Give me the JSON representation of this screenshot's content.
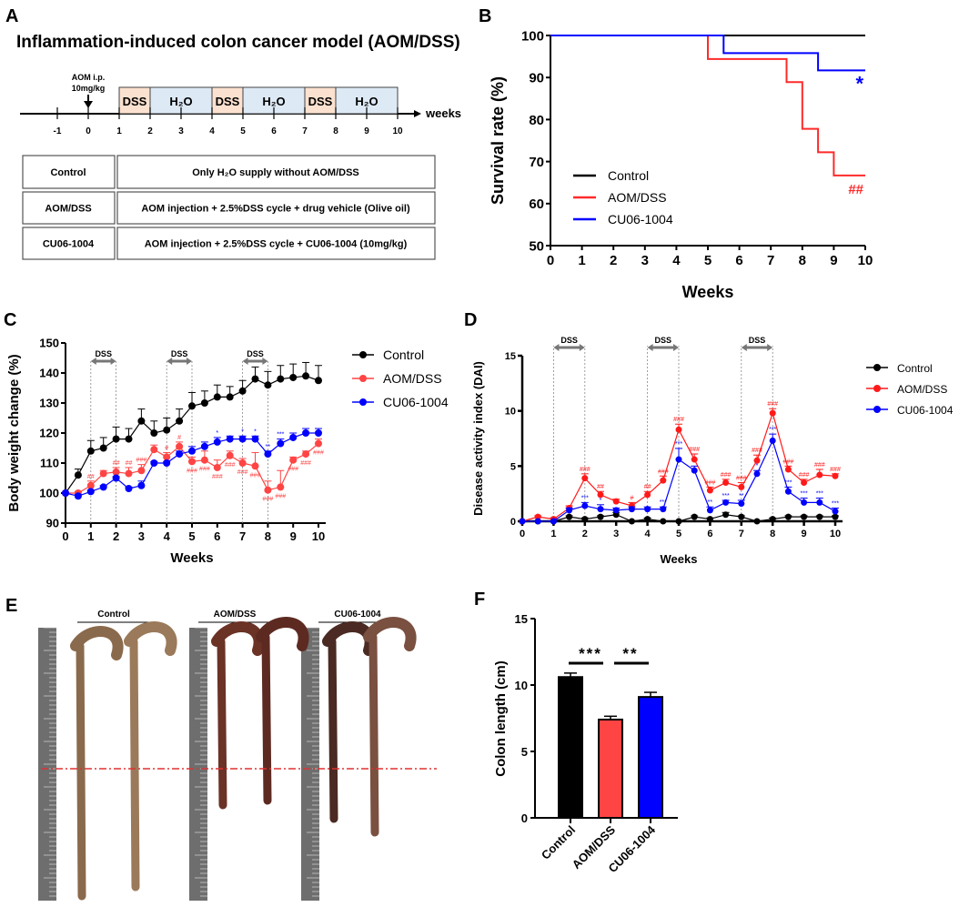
{
  "panels": {
    "a": "A",
    "b": "B",
    "c": "C",
    "d": "D",
    "e": "E",
    "f": "F"
  },
  "protocol": {
    "title": "Inflammation-induced colon cancer model (AOM/DSS)",
    "injection_line1": "AOM i.p.",
    "injection_line2": "10mg/kg",
    "axis_label": "weeks",
    "ticks": [
      "-1",
      "0",
      "1",
      "2",
      "3",
      "4",
      "5",
      "6",
      "7",
      "8",
      "9",
      "10"
    ],
    "phases": [
      {
        "label": "DSS",
        "start": 1,
        "end": 2,
        "color": "#fbe1cf"
      },
      {
        "label": "H₂O",
        "start": 2,
        "end": 4,
        "color": "#dde9f5"
      },
      {
        "label": "DSS",
        "start": 4,
        "end": 5,
        "color": "#fbe1cf"
      },
      {
        "label": "H₂O",
        "start": 5,
        "end": 7,
        "color": "#dde9f5"
      },
      {
        "label": "DSS",
        "start": 7,
        "end": 8,
        "color": "#fbe1cf"
      },
      {
        "label": "H₂O",
        "start": 8,
        "end": 10,
        "color": "#dde9f5"
      }
    ],
    "groups": [
      {
        "name": "Control",
        "description": "Only H₂O supply without AOM/DSS"
      },
      {
        "name": "AOM/DSS",
        "description": "AOM injection + 2.5%DSS cycle + drug vehicle (Olive oil)"
      },
      {
        "name": "CU06-1004",
        "description": "AOM injection + 2.5%DSS cycle + CU06-1004 (10mg/kg)"
      }
    ]
  },
  "photo_panel": {
    "labels": [
      "Control",
      "AOM/DSS",
      "CU06-1004"
    ]
  },
  "chart_data": [
    {
      "id": "survival",
      "type": "line",
      "step": true,
      "title": "",
      "xlabel": "Weeks",
      "ylabel": "Survival rate (%)",
      "xlim": [
        0,
        10
      ],
      "ylim": [
        50,
        100
      ],
      "xticks": [
        0,
        1,
        2,
        3,
        4,
        5,
        6,
        7,
        8,
        9,
        10
      ],
      "yticks": [
        50,
        60,
        70,
        80,
        90,
        100
      ],
      "legend": "bottom-left",
      "series": [
        {
          "name": "Control",
          "color": "#000000",
          "x": [
            0,
            10
          ],
          "y": [
            100,
            100
          ],
          "mark": ""
        },
        {
          "name": "AOM/DSS",
          "color": "#ff2a2a",
          "x": [
            0,
            5,
            7.5,
            8,
            8.5,
            9,
            10
          ],
          "y": [
            100,
            94.4,
            88.9,
            77.8,
            72.2,
            66.7,
            66.7
          ],
          "mark": "##"
        },
        {
          "name": "CU06-1004",
          "color": "#0000ff",
          "x": [
            0,
            5.5,
            8.5,
            10
          ],
          "y": [
            100,
            95.8,
            91.7,
            91.7
          ],
          "mark": "*"
        }
      ]
    },
    {
      "id": "bodyweight",
      "type": "line",
      "xlabel": "Weeks",
      "ylabel": "Body weight change (%)",
      "xlim": [
        0,
        10
      ],
      "ylim": [
        90,
        150
      ],
      "xticks": [
        0,
        1,
        2,
        3,
        4,
        5,
        6,
        7,
        8,
        9,
        10
      ],
      "yticks": [
        90,
        100,
        110,
        120,
        130,
        140,
        150
      ],
      "legend": "right",
      "dss_label": "DSS",
      "dss_periods": [
        [
          1,
          2
        ],
        [
          4,
          5
        ],
        [
          7,
          8
        ]
      ],
      "x": [
        0,
        0.5,
        1,
        1.5,
        2,
        2.5,
        3,
        3.5,
        4,
        4.5,
        5,
        5.5,
        6,
        6.5,
        7,
        7.5,
        8,
        8.5,
        9,
        9.5,
        10
      ],
      "series": [
        {
          "name": "Control",
          "color": "#000000",
          "y": [
            100,
            106,
            114,
            115,
            118,
            118,
            124,
            120,
            121,
            124,
            129,
            130,
            132,
            132,
            134,
            138,
            136,
            138,
            138.5,
            139,
            137.5
          ],
          "err": [
            0,
            2,
            3.5,
            3.5,
            4,
            3.5,
            4,
            4,
            4,
            4,
            4.5,
            4,
            4,
            3.5,
            3.5,
            4,
            4.5,
            4.5,
            4.5,
            4.5,
            5
          ],
          "annotations": []
        },
        {
          "name": "AOM/DSS",
          "color": "#ff4444",
          "y": [
            100,
            100,
            102.5,
            106.5,
            107,
            106.5,
            107.5,
            114.5,
            112,
            115.5,
            110.5,
            111,
            108.5,
            112.5,
            110,
            109,
            101,
            102,
            111,
            113,
            116.5
          ],
          "err": [
            0,
            0.5,
            1.5,
            1,
            1.5,
            2,
            2,
            1.5,
            1.5,
            1.5,
            1.5,
            3,
            2.5,
            1.5,
            1.5,
            4.5,
            3,
            5.5,
            1,
            1,
            1.5
          ],
          "annotations": [
            [
              "",
              "",
              "##",
              "",
              "##",
              "##",
              "###",
              "",
              "#",
              "#",
              "###",
              "###",
              "###",
              "###",
              "###",
              "###",
              "###",
              "###",
              "###",
              "###",
              "###"
            ]
          ]
        },
        {
          "name": "CU06-1004",
          "color": "#0000ff",
          "y": [
            100,
            99,
            100.5,
            102,
            105,
            101.5,
            102.5,
            110,
            110,
            113,
            114,
            115.5,
            117,
            118,
            118,
            118,
            113,
            116.5,
            118.5,
            120,
            120
          ],
          "err": [
            0,
            0.5,
            0.5,
            0.5,
            0.5,
            0.5,
            1.5,
            0.5,
            0.5,
            1,
            1.5,
            1.5,
            1.5,
            1,
            1,
            1,
            1,
            1.5,
            1.5,
            1.5,
            1.5
          ],
          "annotations": [
            [
              "",
              "",
              "",
              "",
              "",
              "",
              "",
              "",
              "",
              "",
              "",
              "",
              "*",
              "",
              "*",
              "*",
              "**",
              "***",
              "",
              "",
              ""
            ]
          ]
        }
      ]
    },
    {
      "id": "dai",
      "type": "line",
      "xlabel": "Weeks",
      "ylabel": "Disease activity index (DAI)",
      "xlim": [
        0,
        10
      ],
      "ylim": [
        0,
        15
      ],
      "xticks": [
        0,
        1,
        2,
        3,
        4,
        5,
        6,
        7,
        8,
        9,
        10
      ],
      "yticks": [
        0,
        5,
        10,
        15
      ],
      "legend": "right",
      "dss_label": "DSS",
      "dss_periods": [
        [
          1,
          2
        ],
        [
          4,
          5
        ],
        [
          7,
          8
        ]
      ],
      "x": [
        0,
        0.5,
        1,
        1.5,
        2,
        2.5,
        3,
        3.5,
        4,
        4.5,
        5,
        5.5,
        6,
        6.5,
        7,
        7.5,
        8,
        8.5,
        9,
        9.5,
        10
      ],
      "series": [
        {
          "name": "Control",
          "color": "#000000",
          "y": [
            0,
            0,
            0,
            0.4,
            0.2,
            0.4,
            0.6,
            0,
            0.2,
            0,
            0,
            0.4,
            0.2,
            0.6,
            0.4,
            0,
            0.2,
            0.4,
            0.4,
            0.4,
            0.4
          ],
          "err": [
            0,
            0,
            0,
            0.1,
            0.1,
            0.1,
            0.2,
            0,
            0.1,
            0,
            0,
            0.1,
            0.1,
            0.2,
            0.1,
            0,
            0.1,
            0.1,
            0.1,
            0.1,
            0.1
          ],
          "annotations": []
        },
        {
          "name": "AOM/DSS",
          "color": "#ff1a1a",
          "y": [
            0,
            0.4,
            0.2,
            1.2,
            3.9,
            2.4,
            1.8,
            1.4,
            2.4,
            3.7,
            8.3,
            5.6,
            2.8,
            3.5,
            3.1,
            5.5,
            9.8,
            4.7,
            3.5,
            4.2,
            4.1
          ],
          "err": [
            0,
            0.1,
            0.1,
            0.2,
            0.4,
            0.3,
            0.2,
            0.3,
            0.3,
            0.4,
            0.5,
            0.5,
            0.3,
            0.3,
            0.4,
            0.5,
            0.4,
            0.3,
            0.3,
            0.5,
            0.2
          ],
          "annotations": [
            [
              "",
              "",
              "",
              "",
              "###",
              "##",
              "",
              "#",
              "##",
              "###",
              "###",
              "###",
              "###",
              "###",
              "###",
              "###",
              "###",
              "###",
              "###",
              "###",
              "###"
            ]
          ]
        },
        {
          "name": "CU06-1004",
          "color": "#0000ff",
          "y": [
            0,
            0,
            0,
            1.0,
            1.4,
            1.1,
            1.0,
            1.1,
            1.1,
            1.1,
            5.6,
            4.6,
            1.0,
            1.7,
            1.6,
            4.3,
            7.3,
            2.7,
            1.7,
            1.7,
            0.9
          ],
          "err": [
            0,
            0,
            0,
            0.2,
            0.3,
            0.4,
            0.2,
            0.2,
            0.2,
            0.2,
            1.0,
            0.4,
            0.3,
            0.2,
            0.3,
            0.3,
            0.6,
            0.4,
            0.4,
            0.4,
            0.3
          ],
          "annotations": [
            [
              "",
              "",
              "",
              "",
              "***",
              "*",
              "",
              "",
              "",
              "***",
              "***",
              "",
              "**",
              "***",
              "**",
              "*",
              "***",
              "***",
              "***",
              "***",
              "***"
            ]
          ]
        }
      ]
    },
    {
      "id": "colon_length",
      "type": "bar",
      "xlabel": "",
      "ylabel": "Colon length (cm)",
      "ylim": [
        0,
        15
      ],
      "yticks": [
        0,
        5,
        10,
        15
      ],
      "categories": [
        "Control",
        "AOM/DSS",
        "CU06-1004"
      ],
      "values": [
        10.6,
        7.4,
        9.1
      ],
      "errors": [
        0.3,
        0.25,
        0.35
      ],
      "colors": [
        "#000000",
        "#ff4444",
        "#0000ff"
      ],
      "significance": [
        {
          "from": 0,
          "to": 1,
          "label": "***"
        },
        {
          "from": 1,
          "to": 2,
          "label": "**"
        }
      ]
    }
  ]
}
